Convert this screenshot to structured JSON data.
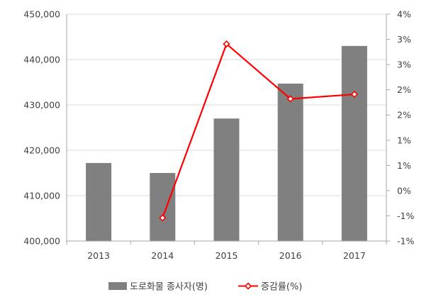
{
  "chart_data": {
    "type": "bar",
    "categories": [
      "2013",
      "2014",
      "2015",
      "2016",
      "2017"
    ],
    "series": [
      {
        "name": "도로화물 종사자(명)",
        "type": "bar",
        "axis": "left",
        "values": [
          417200,
          415000,
          427000,
          434700,
          443000
        ],
        "color": "#808080"
      },
      {
        "name": "증감률(%)",
        "type": "line",
        "axis": "right",
        "values": [
          null,
          -0.54,
          2.91,
          1.82,
          1.91
        ],
        "color": "#ff0000"
      }
    ],
    "y_left": {
      "min": 400000,
      "max": 450000,
      "tick_values": [
        400000,
        410000,
        420000,
        430000,
        440000,
        450000
      ],
      "tick_labels": [
        "400,000",
        "410,000",
        "420,000",
        "430,000",
        "440,000",
        "450,000"
      ]
    },
    "y_right": {
      "min": -1,
      "max": 3.5,
      "tick_values": [
        -1,
        -0.5,
        0,
        0.5,
        1,
        1.5,
        2,
        2.5,
        3,
        3.5
      ],
      "tick_labels": [
        "-1%",
        "-1%",
        "0%",
        "1%",
        "1%",
        "2%",
        "2%",
        "3%",
        "3%",
        "4%"
      ]
    },
    "grid": true,
    "legend_position": "bottom",
    "title": "",
    "xlabel": "",
    "ylabel": ""
  }
}
